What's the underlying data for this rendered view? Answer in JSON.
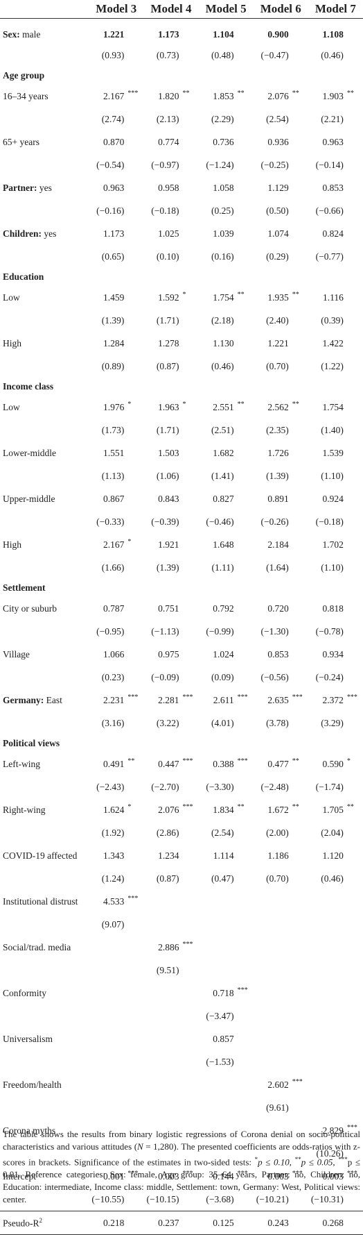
{
  "headers": [
    "Model 3",
    "Model 4",
    "Model 5",
    "Model 6",
    "Model 7"
  ],
  "rows": [
    {
      "type": "bold-label",
      "bold": "Sex:",
      "rest": " male",
      "vals": [
        "1.221",
        "1.173",
        "1.104",
        "0.900",
        "1.108"
      ],
      "sig": [
        "",
        "",
        "",
        "",
        ""
      ],
      "boldvals": true
    },
    {
      "type": "z",
      "vals": [
        "(0.93)",
        "(0.73)",
        "(0.48)",
        "(−0.47)",
        "(0.46)"
      ]
    },
    {
      "type": "section",
      "label": "Age group"
    },
    {
      "type": "row",
      "label": "16–34 years",
      "vals": [
        "2.167",
        "1.820",
        "1.853",
        "2.076",
        "1.903"
      ],
      "sig": [
        "***",
        "**",
        "**",
        "**",
        "**"
      ]
    },
    {
      "type": "z",
      "vals": [
        "(2.74)",
        "(2.13)",
        "(2.29)",
        "(2.54)",
        "(2.21)"
      ]
    },
    {
      "type": "row",
      "label": "65+ years",
      "vals": [
        "0.870",
        "0.774",
        "0.736",
        "0.936",
        "0.963"
      ],
      "sig": [
        "",
        "",
        "",
        "",
        ""
      ]
    },
    {
      "type": "z",
      "vals": [
        "(−0.54)",
        "(−0.97)",
        "(−1.24)",
        "(−0.25)",
        "(−0.14)"
      ]
    },
    {
      "type": "bold-label",
      "bold": "Partner:",
      "rest": " yes",
      "vals": [
        "0.963",
        "0.958",
        "1.058",
        "1.129",
        "0.853"
      ],
      "sig": [
        "",
        "",
        "",
        "",
        ""
      ]
    },
    {
      "type": "z",
      "vals": [
        "(−0.16)",
        "(−0.18)",
        "(0.25)",
        "(0.50)",
        "(−0.66)"
      ]
    },
    {
      "type": "bold-label",
      "bold": "Children:",
      "rest": " yes",
      "vals": [
        "1.173",
        "1.025",
        "1.039",
        "1.074",
        "0.824"
      ],
      "sig": [
        "",
        "",
        "",
        "",
        ""
      ]
    },
    {
      "type": "z",
      "vals": [
        "(0.65)",
        "(0.10)",
        "(0.16)",
        "(0.29)",
        "(−0.77)"
      ]
    },
    {
      "type": "section",
      "label": "Education"
    },
    {
      "type": "row",
      "label": "Low",
      "vals": [
        "1.459",
        "1.592",
        "1.754",
        "1.935",
        "1.116"
      ],
      "sig": [
        "",
        "*",
        "**",
        "**",
        ""
      ]
    },
    {
      "type": "z",
      "vals": [
        "(1.39)",
        "(1.71)",
        "(2.18)",
        "(2.40)",
        "(0.39)"
      ]
    },
    {
      "type": "row",
      "label": "High",
      "vals": [
        "1.284",
        "1.278",
        "1.130",
        "1.221",
        "1.422"
      ],
      "sig": [
        "",
        "",
        "",
        "",
        ""
      ]
    },
    {
      "type": "z",
      "vals": [
        "(0.89)",
        "(0.87)",
        "(0.46)",
        "(0.70)",
        "(1.22)"
      ]
    },
    {
      "type": "section",
      "label": "Income class"
    },
    {
      "type": "row",
      "label": "Low",
      "vals": [
        "1.976",
        "1.963",
        "2.551",
        "2.562",
        "1.754"
      ],
      "sig": [
        "*",
        "*",
        "**",
        "**",
        ""
      ]
    },
    {
      "type": "z",
      "vals": [
        "(1.73)",
        "(1.71)",
        "(2.51)",
        "(2.35)",
        "(1.40)"
      ]
    },
    {
      "type": "row",
      "label": "Lower-middle",
      "vals": [
        "1.551",
        "1.503",
        "1.682",
        "1.726",
        "1.539"
      ],
      "sig": [
        "",
        "",
        "",
        "",
        ""
      ]
    },
    {
      "type": "z",
      "vals": [
        "(1.13)",
        "(1.06)",
        "(1.41)",
        "(1.39)",
        "(1.10)"
      ]
    },
    {
      "type": "row",
      "label": "Upper-middle",
      "vals": [
        "0.867",
        "0.843",
        "0.827",
        "0.891",
        "0.924"
      ],
      "sig": [
        "",
        "",
        "",
        "",
        ""
      ]
    },
    {
      "type": "z",
      "vals": [
        "(−0.33)",
        "(−0.39)",
        "(−0.46)",
        "(−0.26)",
        "(−0.18)"
      ]
    },
    {
      "type": "row",
      "label": "High",
      "vals": [
        "2.167",
        "1.921",
        "1.648",
        "2.184",
        "1.702"
      ],
      "sig": [
        "*",
        "",
        "",
        "",
        ""
      ]
    },
    {
      "type": "z",
      "vals": [
        "(1.66)",
        "(1.39)",
        "(1.11)",
        "(1.64)",
        "(1.10)"
      ]
    },
    {
      "type": "section",
      "label": "Settlement"
    },
    {
      "type": "row",
      "label": "City or suburb",
      "vals": [
        "0.787",
        "0.751",
        "0.792",
        "0.720",
        "0.818"
      ],
      "sig": [
        "",
        "",
        "",
        "",
        ""
      ]
    },
    {
      "type": "z",
      "vals": [
        "(−0.95)",
        "(−1.13)",
        "(−0.99)",
        "(−1.30)",
        "(−0.78)"
      ]
    },
    {
      "type": "row",
      "label": "Village",
      "vals": [
        "1.066",
        "0.975",
        "1.024",
        "0.853",
        "0.934"
      ],
      "sig": [
        "",
        "",
        "",
        "",
        ""
      ]
    },
    {
      "type": "z",
      "vals": [
        "(0.23)",
        "(−0.09)",
        "(0.09)",
        "(−0.56)",
        "(−0.24)"
      ]
    },
    {
      "type": "bold-label",
      "bold": "Germany:",
      "rest": " East",
      "vals": [
        "2.231",
        "2.281",
        "2.611",
        "2.635",
        "2.372"
      ],
      "sig": [
        "***",
        "***",
        "***",
        "***",
        "***"
      ]
    },
    {
      "type": "z",
      "vals": [
        "(3.16)",
        "(3.22)",
        "(4.01)",
        "(3.78)",
        "(3.29)"
      ]
    },
    {
      "type": "section",
      "label": "Political views"
    },
    {
      "type": "row",
      "label": "Left-wing",
      "vals": [
        "0.491",
        "0.447",
        "0.388",
        "0.477",
        "0.590"
      ],
      "sig": [
        "**",
        "***",
        "***",
        "**",
        "*"
      ]
    },
    {
      "type": "z",
      "vals": [
        "(−2.43)",
        "(−2.70)",
        "(−3.30)",
        "(−2.48)",
        "(−1.74)"
      ]
    },
    {
      "type": "row",
      "label": "Right-wing",
      "vals": [
        "1.624",
        "2.076",
        "1.834",
        "1.672",
        "1.705"
      ],
      "sig": [
        "*",
        "***",
        "**",
        "**",
        "**"
      ]
    },
    {
      "type": "z",
      "vals": [
        "(1.92)",
        "(2.86)",
        "(2.54)",
        "(2.00)",
        "(2.04)"
      ]
    },
    {
      "type": "row",
      "label": "COVID-19 affected",
      "vals": [
        "1.343",
        "1.234",
        "1.114",
        "1.186",
        "1.120"
      ],
      "sig": [
        "",
        "",
        "",
        "",
        ""
      ]
    },
    {
      "type": "z",
      "vals": [
        "(1.24)",
        "(0.87)",
        "(0.47)",
        "(0.70)",
        "(0.46)"
      ]
    },
    {
      "type": "row",
      "label": "Institutional distrust",
      "vals": [
        "4.533",
        "",
        "",
        "",
        ""
      ],
      "sig": [
        "***",
        "",
        "",
        "",
        ""
      ]
    },
    {
      "type": "z",
      "vals": [
        "(9.07)",
        "",
        "",
        "",
        ""
      ]
    },
    {
      "type": "row",
      "label": "Social/trad. media",
      "vals": [
        "",
        "2.886",
        "",
        "",
        ""
      ],
      "sig": [
        "",
        "***",
        "",
        "",
        ""
      ]
    },
    {
      "type": "z",
      "vals": [
        "",
        "(9.51)",
        "",
        "",
        ""
      ]
    },
    {
      "type": "row",
      "label": "Conformity",
      "vals": [
        "",
        "",
        "0.718",
        "",
        ""
      ],
      "sig": [
        "",
        "",
        "***",
        "",
        ""
      ]
    },
    {
      "type": "z",
      "vals": [
        "",
        "",
        "(−3.47)",
        "",
        ""
      ]
    },
    {
      "type": "row",
      "label": "Universalism",
      "vals": [
        "",
        "",
        "0.857",
        "",
        ""
      ],
      "sig": [
        "",
        "",
        "",
        "",
        ""
      ]
    },
    {
      "type": "z",
      "vals": [
        "",
        "",
        "(−1.53)",
        "",
        ""
      ]
    },
    {
      "type": "row",
      "label": "Freedom/health",
      "vals": [
        "",
        "",
        "",
        "2.602",
        ""
      ],
      "sig": [
        "",
        "",
        "",
        "***",
        ""
      ]
    },
    {
      "type": "z",
      "vals": [
        "",
        "",
        "",
        "(9.61)",
        ""
      ]
    },
    {
      "type": "row",
      "label": "Corona myths",
      "vals": [
        "",
        "",
        "",
        "",
        "2.829"
      ],
      "sig": [
        "",
        "",
        "",
        "",
        "***"
      ]
    },
    {
      "type": "z",
      "vals": [
        "",
        "",
        "",
        "",
        "(10.26)"
      ]
    },
    {
      "type": "row",
      "label": "Intercept",
      "vals": [
        "0.001",
        "0.003",
        "0.144",
        "0.003",
        "0.003"
      ],
      "sig": [
        "***",
        "***",
        "***",
        "***",
        "***"
      ]
    },
    {
      "type": "z",
      "vals": [
        "(−10.55)",
        "(−10.15)",
        "(−3.68)",
        "(−10.21)",
        "(−10.31)"
      ]
    },
    {
      "type": "pseudo",
      "label": "Pseudo-R",
      "sup": "2",
      "vals": [
        "0.218",
        "0.237",
        "0.125",
        "0.243",
        "0.268"
      ]
    }
  ],
  "note": {
    "p1": "The table shows the results from binary logistic regressions of Corona denial on socio-political characteristics and various attitudes (",
    "n": "N",
    "p2": " = 1,280). The presented coefficients are odds-ratios with z-scores in brackets. Significance of the estimates in two-sided tests: ",
    "s1": "*",
    "p3": "p ≤ 0.10, ",
    "s2": "**",
    "p4": "p ≤ 0.05, ",
    "s3": "***",
    "p5": "p ≤ 0.01. Reference categories: Sex: female, Age group: 35–64 years, Partner: no, Children: no, Education: intermediate, Income class: middle, Settlement: town, Germany: West, Political views: center."
  }
}
